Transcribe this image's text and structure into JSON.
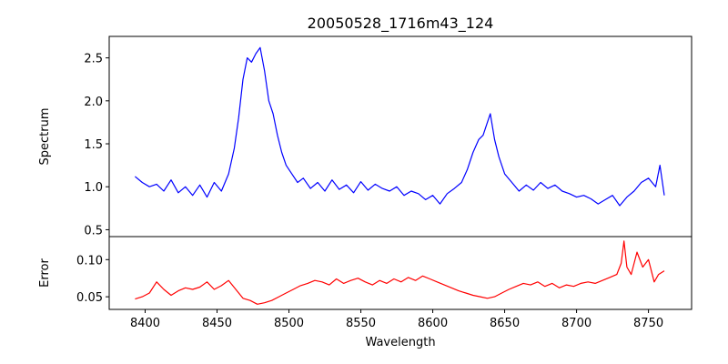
{
  "chart_data": [
    {
      "type": "line",
      "title": "20050528_1716m43_124",
      "xlabel": "",
      "ylabel": "Spectrum",
      "xlim": [
        8375,
        8780
      ],
      "ylim": [
        0.42,
        2.75
      ],
      "grid": false,
      "yticks": [
        0.5,
        1.0,
        1.5,
        2.0,
        2.5
      ],
      "ytick_labels": [
        "0.5",
        "1.0",
        "1.5",
        "2.0",
        "2.5"
      ],
      "series": [
        {
          "color": "#0000ff",
          "x": [
            8393,
            8398,
            8403,
            8408,
            8413,
            8418,
            8423,
            8428,
            8433,
            8438,
            8443,
            8448,
            8453,
            8458,
            8462,
            8465,
            8468,
            8471,
            8474,
            8477,
            8480,
            8483,
            8486,
            8489,
            8492,
            8495,
            8498,
            8502,
            8506,
            8510,
            8515,
            8520,
            8525,
            8530,
            8535,
            8540,
            8545,
            8550,
            8555,
            8560,
            8565,
            8570,
            8575,
            8580,
            8585,
            8590,
            8595,
            8600,
            8605,
            8610,
            8615,
            8620,
            8624,
            8628,
            8632,
            8635,
            8638,
            8640,
            8643,
            8646,
            8650,
            8655,
            8660,
            8665,
            8670,
            8675,
            8680,
            8685,
            8690,
            8695,
            8700,
            8705,
            8710,
            8715,
            8720,
            8725,
            8730,
            8735,
            8740,
            8745,
            8750,
            8755,
            8758,
            8761
          ],
          "y": [
            1.12,
            1.05,
            1.0,
            1.03,
            0.95,
            1.08,
            0.93,
            1.0,
            0.9,
            1.02,
            0.88,
            1.05,
            0.95,
            1.15,
            1.45,
            1.8,
            2.25,
            2.5,
            2.45,
            2.55,
            2.62,
            2.35,
            2.0,
            1.85,
            1.6,
            1.4,
            1.25,
            1.15,
            1.05,
            1.1,
            0.98,
            1.05,
            0.95,
            1.08,
            0.97,
            1.02,
            0.93,
            1.06,
            0.96,
            1.03,
            0.98,
            0.95,
            1.0,
            0.9,
            0.95,
            0.92,
            0.85,
            0.9,
            0.8,
            0.92,
            0.98,
            1.05,
            1.2,
            1.4,
            1.55,
            1.6,
            1.75,
            1.85,
            1.55,
            1.35,
            1.15,
            1.05,
            0.95,
            1.02,
            0.96,
            1.05,
            0.98,
            1.02,
            0.95,
            0.92,
            0.88,
            0.9,
            0.86,
            0.8,
            0.85,
            0.9,
            0.78,
            0.88,
            0.95,
            1.05,
            1.1,
            1.0,
            1.25,
            0.9
          ]
        }
      ]
    },
    {
      "type": "line",
      "title": "",
      "xlabel": "Wavelength",
      "ylabel": "Error",
      "xlim": [
        8375,
        8780
      ],
      "ylim": [
        0.033,
        0.131
      ],
      "grid": false,
      "xticks": [
        8400,
        8450,
        8500,
        8550,
        8600,
        8650,
        8700,
        8750
      ],
      "xtick_labels": [
        "8400",
        "8450",
        "8500",
        "8550",
        "8600",
        "8650",
        "8700",
        "8750"
      ],
      "yticks": [
        0.05,
        0.1
      ],
      "ytick_labels": [
        "0.05",
        "0.10"
      ],
      "series": [
        {
          "color": "#ff0000",
          "x": [
            8393,
            8398,
            8403,
            8408,
            8413,
            8418,
            8423,
            8428,
            8433,
            8438,
            8443,
            8448,
            8453,
            8458,
            8463,
            8468,
            8473,
            8478,
            8483,
            8488,
            8493,
            8498,
            8503,
            8508,
            8513,
            8518,
            8523,
            8528,
            8533,
            8538,
            8543,
            8548,
            8553,
            8558,
            8563,
            8568,
            8573,
            8578,
            8583,
            8588,
            8593,
            8598,
            8603,
            8608,
            8613,
            8618,
            8623,
            8628,
            8633,
            8638,
            8643,
            8648,
            8653,
            8658,
            8663,
            8668,
            8673,
            8678,
            8683,
            8688,
            8693,
            8698,
            8703,
            8708,
            8713,
            8718,
            8723,
            8728,
            8731,
            8733,
            8735,
            8738,
            8742,
            8746,
            8750,
            8754,
            8757,
            8761
          ],
          "y": [
            0.047,
            0.05,
            0.055,
            0.07,
            0.06,
            0.052,
            0.058,
            0.062,
            0.06,
            0.063,
            0.07,
            0.06,
            0.065,
            0.072,
            0.06,
            0.048,
            0.045,
            0.04,
            0.042,
            0.045,
            0.05,
            0.055,
            0.06,
            0.065,
            0.068,
            0.072,
            0.07,
            0.066,
            0.074,
            0.068,
            0.072,
            0.075,
            0.07,
            0.066,
            0.072,
            0.068,
            0.074,
            0.07,
            0.076,
            0.072,
            0.078,
            0.074,
            0.07,
            0.066,
            0.062,
            0.058,
            0.055,
            0.052,
            0.05,
            0.048,
            0.05,
            0.055,
            0.06,
            0.064,
            0.068,
            0.066,
            0.07,
            0.064,
            0.068,
            0.062,
            0.066,
            0.064,
            0.068,
            0.07,
            0.068,
            0.072,
            0.076,
            0.08,
            0.095,
            0.125,
            0.09,
            0.08,
            0.11,
            0.09,
            0.1,
            0.07,
            0.08,
            0.085
          ]
        }
      ]
    }
  ]
}
